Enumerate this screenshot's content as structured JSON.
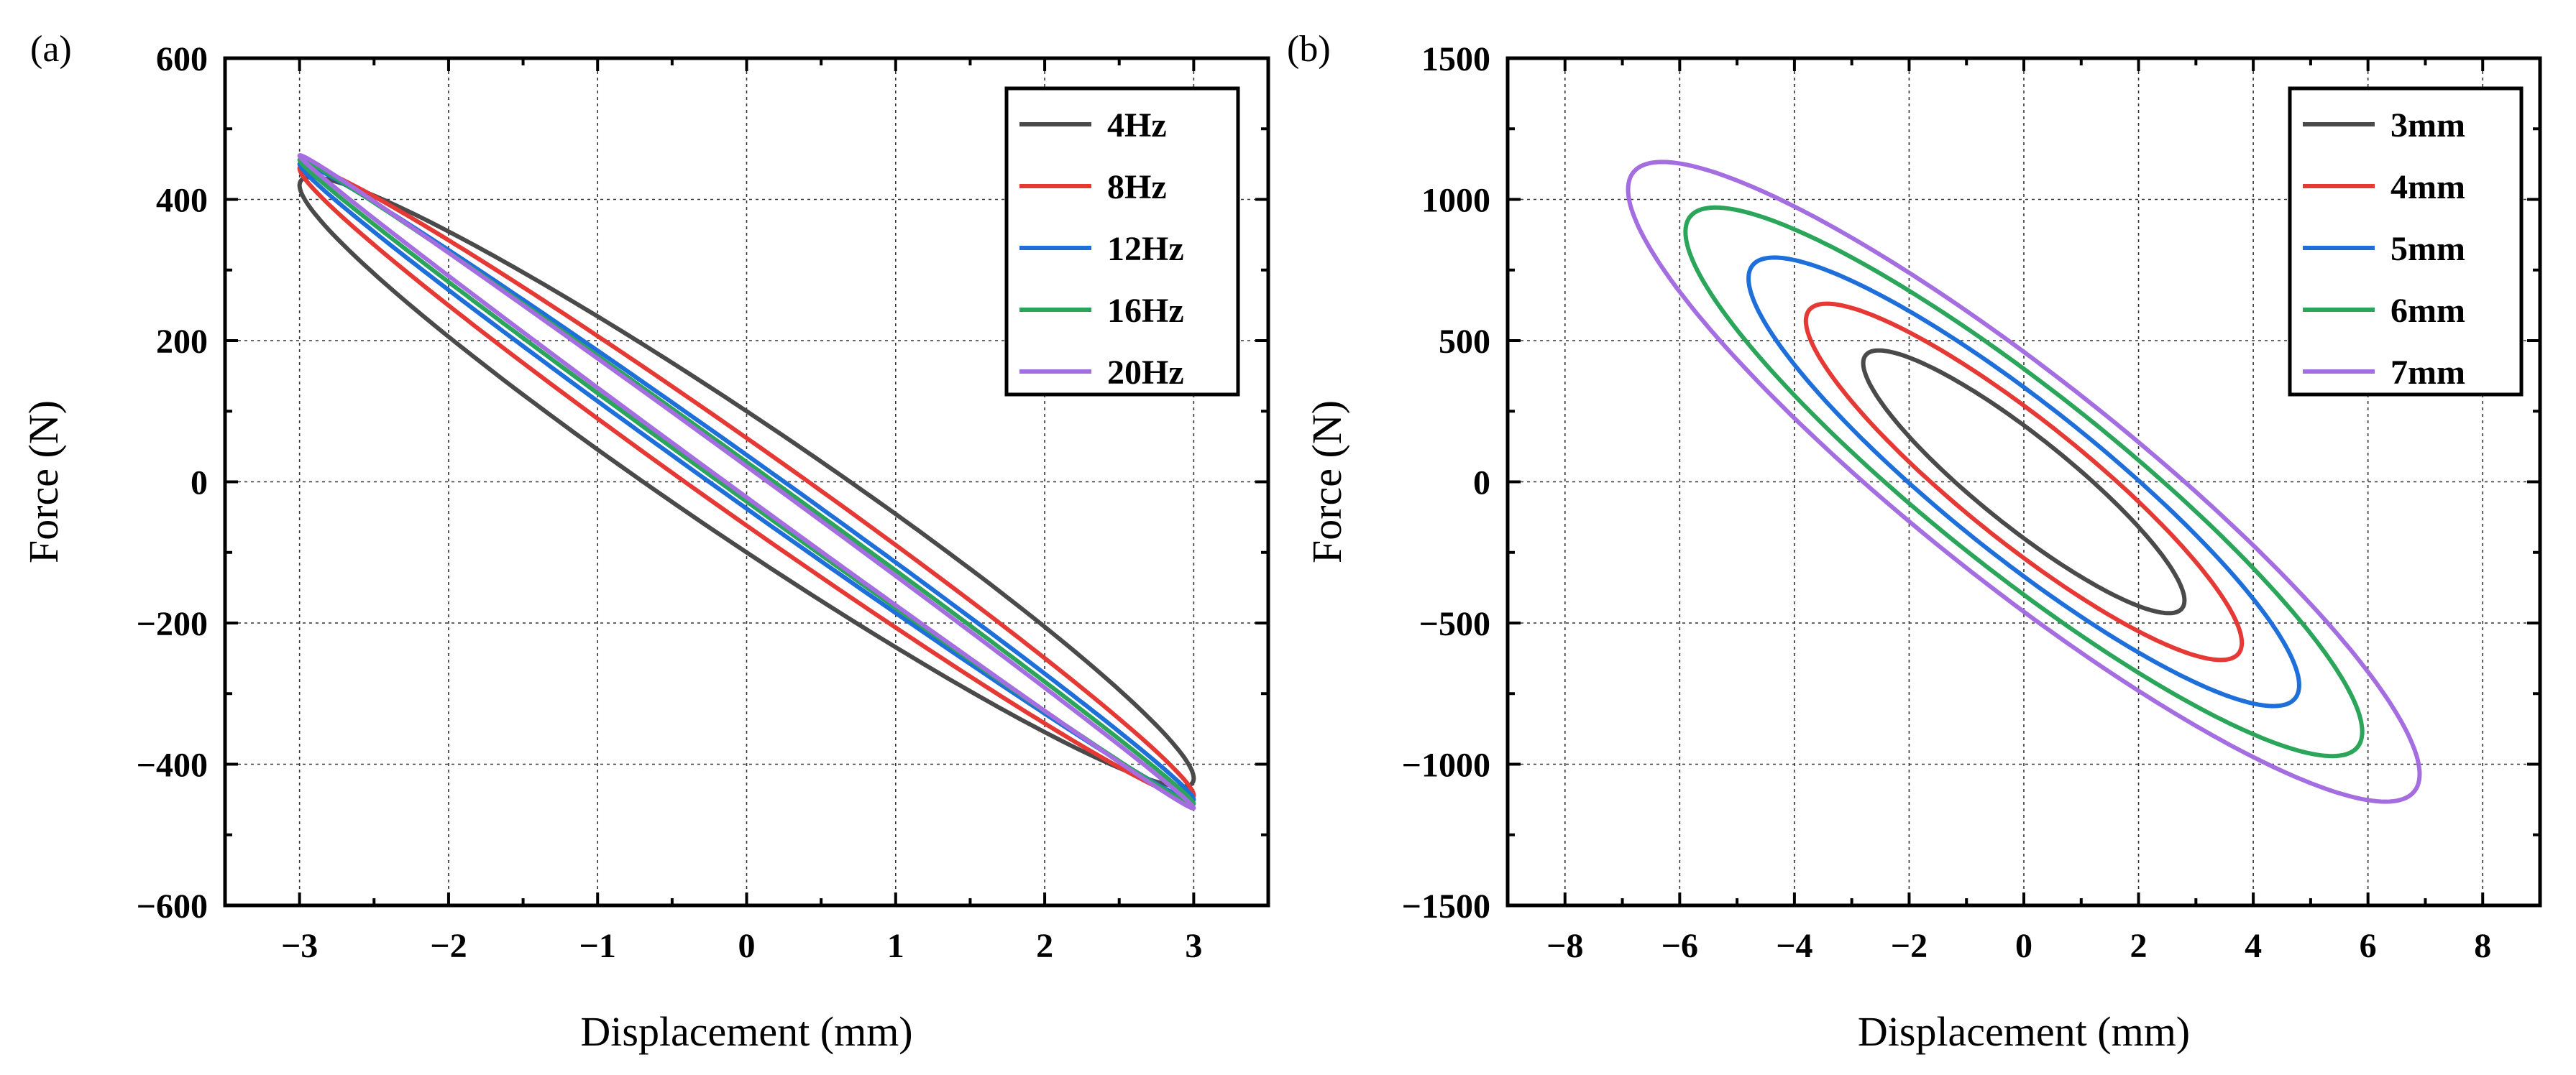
{
  "chart_data": [
    {
      "type": "line",
      "panel_label": "(a)",
      "xlabel": "Displacement (mm)",
      "ylabel": "Force (N)",
      "xlim": [
        -3.5,
        3.5
      ],
      "ylim": [
        -600,
        600
      ],
      "xticks": [
        -3,
        -2,
        -1,
        0,
        1,
        2,
        3
      ],
      "xtick_labels": [
        "−3",
        "−2",
        "−1",
        "0",
        "1",
        "2",
        "3"
      ],
      "yticks": [
        -600,
        -400,
        -200,
        0,
        200,
        400,
        600
      ],
      "ytick_labels": [
        "−600",
        "−400",
        "−200",
        "0",
        "200",
        "400",
        "600"
      ],
      "grid": true,
      "legend_position": "top-right",
      "series": [
        {
          "name": "4Hz",
          "color": "#4a4a4a",
          "amplitude": 3,
          "slope": -140,
          "offset": 0,
          "half_width": 100,
          "end_force": 430
        },
        {
          "name": "8Hz",
          "color": "#e53935",
          "amplitude": 3,
          "slope": -148,
          "offset": 0,
          "half_width": 62,
          "end_force": 445
        },
        {
          "name": "12Hz",
          "color": "#1e6fd9",
          "amplitude": 3,
          "slope": -150,
          "offset": 0,
          "half_width": 38,
          "end_force": 452
        },
        {
          "name": "16Hz",
          "color": "#2aa55a",
          "amplitude": 3,
          "slope": -152,
          "offset": 0,
          "half_width": 28,
          "end_force": 457
        },
        {
          "name": "20Hz",
          "color": "#a46ee0",
          "amplitude": 3,
          "slope": -154,
          "offset": 0,
          "half_width": 22,
          "end_force": 462
        }
      ]
    },
    {
      "type": "line",
      "panel_label": "(b)",
      "xlabel": "Displacement (mm)",
      "ylabel": "Force (N)",
      "xlim": [
        -9,
        9
      ],
      "ylim": [
        -1500,
        1500
      ],
      "xticks": [
        -8,
        -6,
        -4,
        -2,
        0,
        2,
        4,
        6,
        8
      ],
      "xtick_labels": [
        "−8",
        "−6",
        "−4",
        "−2",
        "0",
        "2",
        "4",
        "6",
        "8"
      ],
      "yticks": [
        -1500,
        -1000,
        -500,
        0,
        500,
        1000,
        1500
      ],
      "ytick_labels": [
        "−1500",
        "−1000",
        "−500",
        "0",
        "500",
        "1000",
        "1500"
      ],
      "grid": true,
      "legend_position": "top-right",
      "series": [
        {
          "name": "3mm",
          "color": "#4a4a4a",
          "amplitude": 2.8,
          "slope": -150,
          "offset": 0,
          "half_width": 200,
          "end_force": 420
        },
        {
          "name": "4mm",
          "color": "#e53935",
          "amplitude": 3.8,
          "slope": -150,
          "offset": 0,
          "half_width": 270,
          "end_force": 570
        },
        {
          "name": "5mm",
          "color": "#1e6fd9",
          "amplitude": 4.8,
          "slope": -150,
          "offset": 0,
          "half_width": 335,
          "end_force": 720
        },
        {
          "name": "6mm",
          "color": "#2aa55a",
          "amplitude": 5.9,
          "slope": -150,
          "offset": 0,
          "half_width": 400,
          "end_force": 885
        },
        {
          "name": "7mm",
          "color": "#a46ee0",
          "amplitude": 6.9,
          "slope": -150,
          "offset": 0,
          "half_width": 460,
          "end_force": 1035
        }
      ]
    }
  ]
}
